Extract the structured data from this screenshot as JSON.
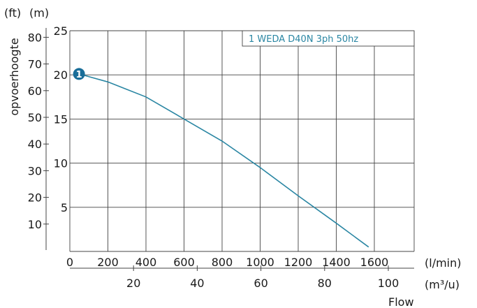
{
  "chart_data": {
    "type": "line",
    "title": "",
    "ylabel": "opvoerhoogte",
    "xlabel": "Flow",
    "x_unit": "(l/min)",
    "x2_unit": "(m³/u)",
    "y_unit_m": "(m)",
    "y_unit_ft": "(ft)",
    "xlim": [
      0,
      1750
    ],
    "ylim": [
      0,
      25
    ],
    "x_ticks": [
      0,
      200,
      400,
      600,
      800,
      1000,
      1200,
      1400,
      1600
    ],
    "x_tick_labels": [
      "0",
      "200",
      "400",
      "600",
      "800",
      "1000",
      "1200",
      "1400",
      "1600"
    ],
    "x2_ticks": [
      20,
      40,
      60,
      80,
      100
    ],
    "x2_tick_labels": [
      "20",
      "40",
      "60",
      "80",
      "100"
    ],
    "y_ticks": [
      5,
      10,
      15,
      20,
      25
    ],
    "y_tick_labels": [
      "5",
      "10",
      "15",
      "20",
      "25"
    ],
    "y_ft_ticks": [
      10,
      20,
      30,
      40,
      50,
      60,
      70,
      80
    ],
    "y_ft_tick_labels": [
      "10",
      "20",
      "30",
      "40",
      "50",
      "60",
      "70",
      "80"
    ],
    "grid": true,
    "legend_position": "top-right",
    "series": [
      {
        "name": "1 WEDA D40N 3ph 50hz",
        "marker_label": "1",
        "color": "#2a86a3",
        "x": [
          50,
          200,
          400,
          600,
          800,
          1000,
          1200,
          1400,
          1570
        ],
        "y": [
          20.1,
          19.2,
          17.5,
          15.0,
          12.5,
          9.5,
          6.3,
          3.2,
          0.5
        ]
      }
    ]
  }
}
